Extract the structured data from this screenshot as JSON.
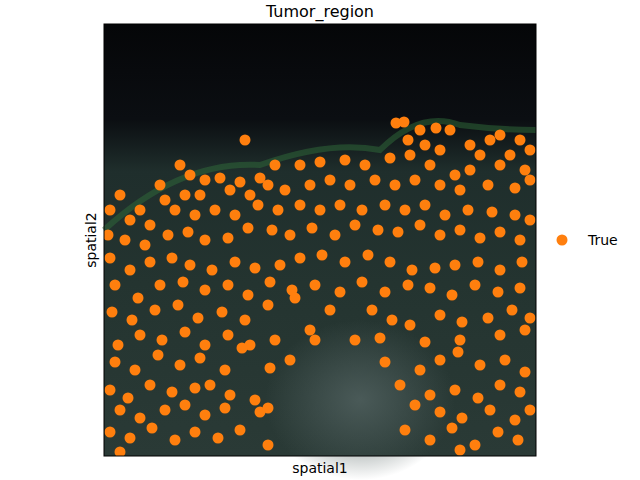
{
  "chart_data": {
    "type": "scatter",
    "title": "Tumor_region",
    "x_label": "spatial1",
    "y_label": "spatial2",
    "xlim": [
      104,
      536
    ],
    "ylim": [
      456,
      24
    ],
    "tick_labels": false,
    "legend": "right",
    "series": [
      {
        "name": "True",
        "color": "#ff7f0e",
        "marker": "circle",
        "x": [
          396,
          404,
          420,
          436,
          450,
          408,
          425,
          440,
          470,
          490,
          500,
          520,
          530,
          480,
          510,
          500,
          525,
          470,
          245,
          180,
          160,
          190,
          205,
          220,
          240,
          260,
          275,
          300,
          320,
          345,
          365,
          390,
          410,
          430,
          455,
          488,
          515,
          530,
          120,
          140,
          165,
          185,
          200,
          230,
          250,
          268,
          285,
          310,
          330,
          350,
          375,
          395,
          415,
          440,
          460,
          110,
          130,
          150,
          175,
          195,
          215,
          235,
          258,
          278,
          300,
          320,
          340,
          362,
          385,
          405,
          425,
          445,
          468,
          492,
          515,
          530,
          108,
          125,
          145,
          168,
          188,
          205,
          228,
          248,
          272,
          290,
          312,
          335,
          355,
          378,
          398,
          420,
          440,
          460,
          480,
          500,
          520,
          110,
          130,
          150,
          172,
          190,
          212,
          235,
          255,
          280,
          300,
          322,
          345,
          368,
          390,
          412,
          435,
          455,
          478,
          500,
          522,
          115,
          138,
          160,
          183,
          205,
          228,
          248,
          270,
          292,
          315,
          340,
          362,
          385,
          408,
          430,
          452,
          475,
          498,
          520,
          112,
          132,
          155,
          178,
          198,
          222,
          245,
          268,
          295,
          310,
          330,
          372,
          392,
          410,
          440,
          462,
          488,
          512,
          530,
          118,
          140,
          162,
          185,
          205,
          228,
          250,
          275,
          315,
          355,
          380,
          425,
          460,
          500,
          525,
          115,
          135,
          158,
          180,
          200,
          225,
          242,
          270,
          290,
          385,
          420,
          440,
          458,
          480,
          505,
          525,
          110,
          128,
          150,
          172,
          195,
          210,
          230,
          255,
          400,
          430,
          455,
          478,
          500,
          520,
          120,
          140,
          165,
          185,
          205,
          225,
          260,
          268,
          415,
          440,
          462,
          490,
          515,
          530,
          110,
          130,
          152,
          175,
          195,
          218,
          240,
          268,
          405,
          430,
          452,
          475,
          498,
          518,
          120,
          460
        ],
        "values": [
          123,
          122,
          130,
          128,
          130,
          140,
          145,
          150,
          145,
          140,
          135,
          140,
          150,
          155,
          155,
          165,
          170,
          170,
          140,
          165,
          185,
          175,
          180,
          178,
          182,
          178,
          165,
          165,
          162,
          160,
          165,
          158,
          155,
          165,
          175,
          185,
          188,
          180,
          195,
          210,
          200,
          195,
          195,
          190,
          195,
          185,
          190,
          185,
          180,
          185,
          180,
          185,
          180,
          185,
          190,
          210,
          220,
          225,
          210,
          215,
          210,
          215,
          205,
          210,
          205,
          210,
          205,
          210,
          205,
          210,
          205,
          215,
          210,
          212,
          215,
          220,
          235,
          240,
          245,
          235,
          232,
          240,
          238,
          228,
          230,
          235,
          228,
          235,
          225,
          230,
          232,
          225,
          235,
          230,
          238,
          232,
          240,
          258,
          270,
          262,
          258,
          265,
          270,
          262,
          268,
          265,
          258,
          255,
          262,
          255,
          262,
          270,
          268,
          265,
          262,
          270,
          262,
          285,
          298,
          285,
          282,
          290,
          285,
          295,
          282,
          290,
          285,
          292,
          282,
          292,
          285,
          288,
          295,
          285,
          292,
          288,
          312,
          320,
          310,
          305,
          318,
          312,
          320,
          305,
          298,
          330,
          310,
          310,
          320,
          325,
          315,
          322,
          318,
          310,
          318,
          345,
          335,
          340,
          332,
          345,
          335,
          345,
          340,
          340,
          340,
          338,
          342,
          340,
          335,
          330,
          362,
          370,
          355,
          365,
          358,
          370,
          348,
          368,
          360,
          362,
          370,
          360,
          352,
          365,
          360,
          372,
          390,
          398,
          385,
          392,
          388,
          385,
          395,
          400,
          385,
          395,
          390,
          398,
          385,
          392,
          410,
          418,
          410,
          405,
          415,
          408,
          412,
          408,
          405,
          412,
          418,
          410,
          420,
          410,
          432,
          438,
          428,
          440,
          432,
          438,
          430,
          445,
          430,
          440,
          428,
          445,
          432,
          440,
          452,
          450
        ]
      }
    ]
  }
}
